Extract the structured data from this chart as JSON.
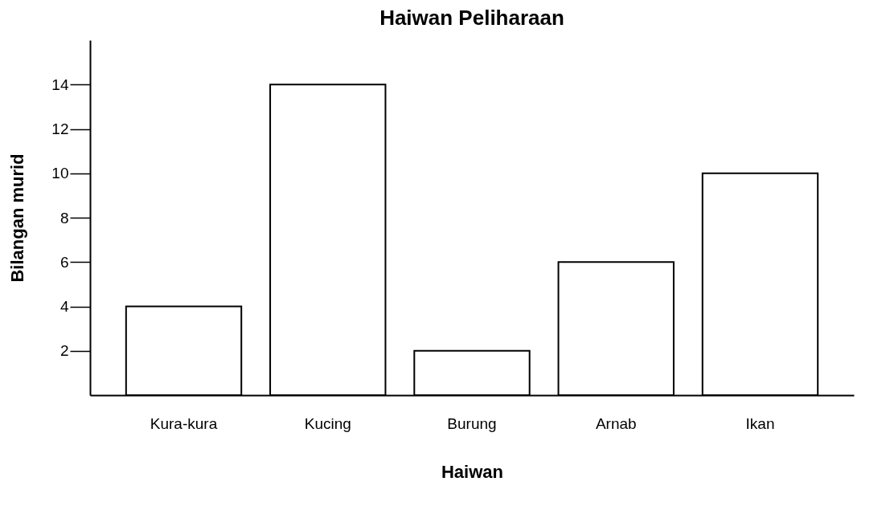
{
  "chart_data": {
    "type": "bar",
    "title": "Haiwan Peliharaan",
    "xlabel": "Haiwan",
    "ylabel": "Bilangan murid",
    "categories": [
      "Kura-kura",
      "Kucing",
      "Burung",
      "Arnab",
      "Ikan"
    ],
    "values": [
      4,
      14,
      2,
      6,
      10
    ],
    "color": "#ffffff",
    "ylim": [
      0,
      16
    ],
    "yticks": [
      2,
      4,
      6,
      8,
      10,
      12,
      14
    ],
    "grid": false
  }
}
